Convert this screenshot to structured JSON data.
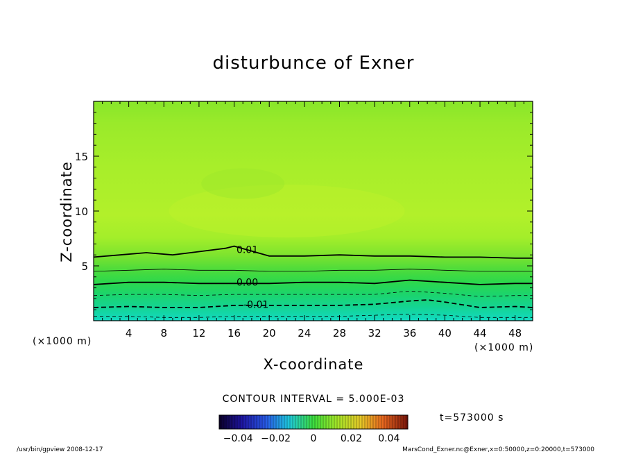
{
  "chart_data": {
    "type": "contour",
    "title": "disturbunce of Exner",
    "xlabel": "X-coordinate",
    "ylabel": "Z-coordinate",
    "x_unit": "(×1000 m)",
    "y_unit": "(×1000 m)",
    "xlim": [
      0,
      50
    ],
    "ylim": [
      0,
      20
    ],
    "x_ticks": [
      4,
      8,
      12,
      16,
      20,
      24,
      28,
      32,
      36,
      40,
      44,
      48
    ],
    "y_ticks": [
      5,
      10,
      15
    ],
    "contour_interval": "CONTOUR INTERVAL = 5.000E-03",
    "time_label": "t=573000 s",
    "colorbar": {
      "range": [
        -0.05,
        0.05
      ],
      "ticks": [
        -0.04,
        -0.02,
        0,
        0.02,
        0.04
      ],
      "tick_labels": [
        "−0.04",
        "−0.02",
        "0",
        "0.02",
        "0.04"
      ]
    },
    "contours": [
      {
        "level": 0.01,
        "label": "0.01",
        "style": "solid-bold",
        "x": [
          0,
          3,
          6,
          9,
          12,
          15,
          16,
          20,
          24,
          28,
          32,
          36,
          40,
          44,
          48,
          50
        ],
        "z": [
          5.8,
          6.0,
          6.2,
          6.0,
          6.3,
          6.6,
          6.8,
          5.9,
          5.9,
          6.0,
          5.9,
          5.9,
          5.8,
          5.8,
          5.7,
          5.7
        ],
        "label_x": 17.5,
        "label_z": 6.5
      },
      {
        "level": 0.005,
        "label": "",
        "style": "solid-thin",
        "x": [
          0,
          4,
          8,
          12,
          16,
          20,
          24,
          28,
          32,
          36,
          40,
          44,
          48,
          50
        ],
        "z": [
          4.5,
          4.6,
          4.7,
          4.6,
          4.6,
          4.5,
          4.5,
          4.6,
          4.6,
          4.7,
          4.6,
          4.5,
          4.5,
          4.5
        ]
      },
      {
        "level": 0.0,
        "label": "0.00",
        "style": "solid-bold",
        "x": [
          0,
          4,
          8,
          12,
          16,
          20,
          24,
          28,
          32,
          36,
          40,
          44,
          48,
          50
        ],
        "z": [
          3.3,
          3.5,
          3.5,
          3.4,
          3.4,
          3.4,
          3.5,
          3.5,
          3.4,
          3.7,
          3.5,
          3.3,
          3.4,
          3.4
        ],
        "label_x": 17.5,
        "label_z": 3.5
      },
      {
        "level": -0.005,
        "label": "",
        "style": "dashed-thin",
        "x": [
          0,
          4,
          8,
          12,
          16,
          20,
          24,
          28,
          32,
          36,
          40,
          44,
          48,
          50
        ],
        "z": [
          2.3,
          2.4,
          2.4,
          2.3,
          2.4,
          2.4,
          2.4,
          2.4,
          2.4,
          2.7,
          2.5,
          2.2,
          2.3,
          2.3
        ]
      },
      {
        "level": -0.01,
        "label": "-0.01",
        "style": "dashed-bold",
        "x": [
          0,
          4,
          8,
          12,
          16,
          20,
          24,
          28,
          32,
          36,
          38,
          40,
          44,
          48,
          50
        ],
        "z": [
          1.2,
          1.3,
          1.2,
          1.2,
          1.4,
          1.4,
          1.4,
          1.4,
          1.5,
          1.8,
          1.9,
          1.7,
          1.2,
          1.3,
          1.2
        ],
        "label_x": 18.5,
        "label_z": 1.5
      },
      {
        "level": -0.015,
        "label": "",
        "style": "dashed-thin",
        "x": [
          0,
          4,
          8,
          12,
          16,
          20,
          24,
          28,
          32,
          36,
          40,
          44,
          48,
          50
        ],
        "z": [
          0.4,
          0.4,
          0.3,
          0.3,
          0.4,
          0.4,
          0.4,
          0.4,
          0.5,
          0.6,
          0.5,
          0.3,
          0.3,
          0.3
        ]
      }
    ]
  },
  "footer": {
    "left": "/usr/bin/gpview  2008-12-17",
    "right": "MarsCond_Exner.nc@Exner,x=0:50000,z=0:20000,t=573000"
  }
}
